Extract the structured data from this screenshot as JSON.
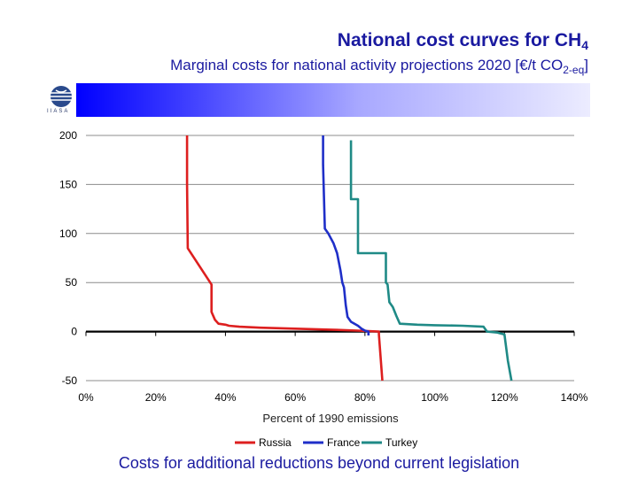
{
  "header": {
    "title_main": "National cost curves for CH",
    "title_sub": "4",
    "subtitle_main": "Marginal costs for national activity projections 2020 [€/t CO",
    "subtitle_sub": "2-eq",
    "subtitle_end": "]"
  },
  "logo": {
    "text": "IIASA"
  },
  "footer": {
    "caption": "Costs for additional reductions beyond current legislation"
  },
  "colors": {
    "russia": "#dd1f1f",
    "france": "#1f2fc8",
    "turkey": "#1f8a86",
    "title": "#1a1aa0"
  },
  "chart_data": {
    "type": "line",
    "title": "",
    "xlabel": "Percent of 1990 emissions",
    "ylabel": "",
    "xlim": [
      0,
      140
    ],
    "ylim": [
      -50,
      200
    ],
    "x_ticks": [
      "0%",
      "20%",
      "40%",
      "60%",
      "80%",
      "100%",
      "120%",
      "140%"
    ],
    "y_ticks": [
      "200",
      "150",
      "100",
      "50",
      "0",
      "-50"
    ],
    "grid": "horizontal",
    "legend_position": "bottom",
    "series": [
      {
        "name": "Russia",
        "points": [
          [
            29,
            200
          ],
          [
            29,
            150
          ],
          [
            29.2,
            85
          ],
          [
            36,
            48
          ],
          [
            36,
            20
          ],
          [
            37,
            12
          ],
          [
            38,
            8
          ],
          [
            40,
            7
          ],
          [
            41,
            6
          ],
          [
            44,
            5
          ],
          [
            50,
            4
          ],
          [
            60,
            3
          ],
          [
            70,
            2
          ],
          [
            78,
            1
          ],
          [
            84,
            0
          ],
          [
            84,
            -3
          ],
          [
            85,
            -50
          ]
        ]
      },
      {
        "name": "France",
        "points": [
          [
            68,
            200
          ],
          [
            68,
            170
          ],
          [
            68.5,
            105
          ],
          [
            69.5,
            100
          ],
          [
            71,
            90
          ],
          [
            72,
            80
          ],
          [
            73,
            62
          ],
          [
            73.5,
            50
          ],
          [
            74,
            45
          ],
          [
            74.5,
            27
          ],
          [
            75,
            15
          ],
          [
            76,
            10
          ],
          [
            78,
            6
          ],
          [
            79,
            3
          ],
          [
            80,
            1
          ],
          [
            81,
            0
          ],
          [
            81,
            -4
          ]
        ]
      },
      {
        "name": "Turkey",
        "points": [
          [
            76,
            195
          ],
          [
            76,
            135
          ],
          [
            78,
            135
          ],
          [
            78,
            80
          ],
          [
            86,
            80
          ],
          [
            86,
            50
          ],
          [
            86.5,
            48
          ],
          [
            87,
            30
          ],
          [
            88,
            25
          ],
          [
            89,
            16
          ],
          [
            90,
            8
          ],
          [
            95,
            7
          ],
          [
            100,
            6.5
          ],
          [
            108,
            6
          ],
          [
            114,
            5
          ],
          [
            115,
            0
          ],
          [
            118,
            -1
          ],
          [
            120,
            -3
          ],
          [
            121,
            -30
          ],
          [
            122,
            -50
          ]
        ]
      }
    ]
  }
}
